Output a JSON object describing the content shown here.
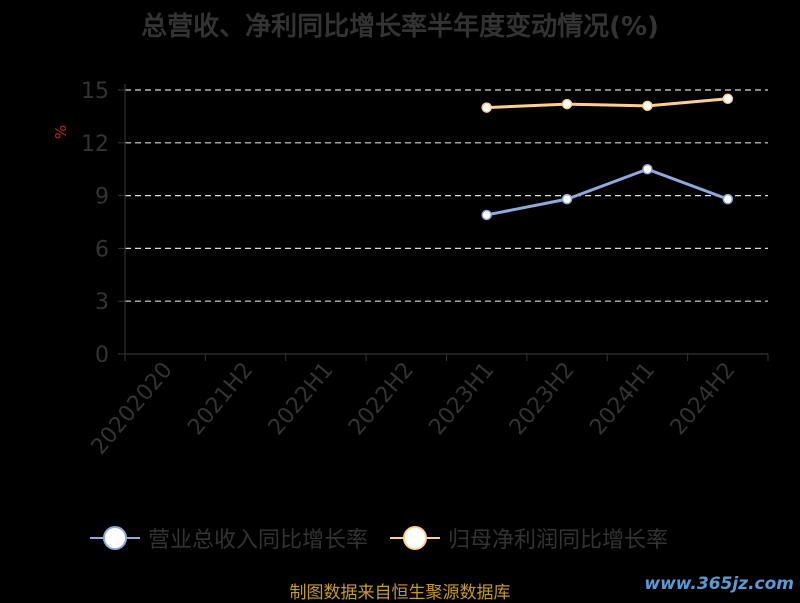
{
  "chart_data": {
    "type": "line",
    "title": "总营收、净利同比增长率半年度变动情况(%)",
    "ylabel": "%",
    "ylim": [
      0,
      15
    ],
    "yticks": [
      0,
      3,
      6,
      9,
      12,
      15
    ],
    "grid": true,
    "legend_position": "bottom",
    "categories": [
      "20202020",
      "2021H2",
      "2022H1",
      "2022H2",
      "2023H1",
      "2023H2",
      "2024H1",
      "2024H2"
    ],
    "series": [
      {
        "name": "营业总收入同比增长率",
        "color": "#8eaadb",
        "values": [
          null,
          null,
          null,
          null,
          7.9,
          8.8,
          10.5,
          8.8
        ]
      },
      {
        "name": "归母净利润同比增长率",
        "color": "#ffd08a",
        "values": [
          null,
          null,
          null,
          null,
          14.0,
          14.2,
          14.1,
          14.5
        ]
      }
    ]
  },
  "footer": {
    "source": "制图数据来自恒生聚源数据库",
    "watermark": "www.365jz.com"
  }
}
